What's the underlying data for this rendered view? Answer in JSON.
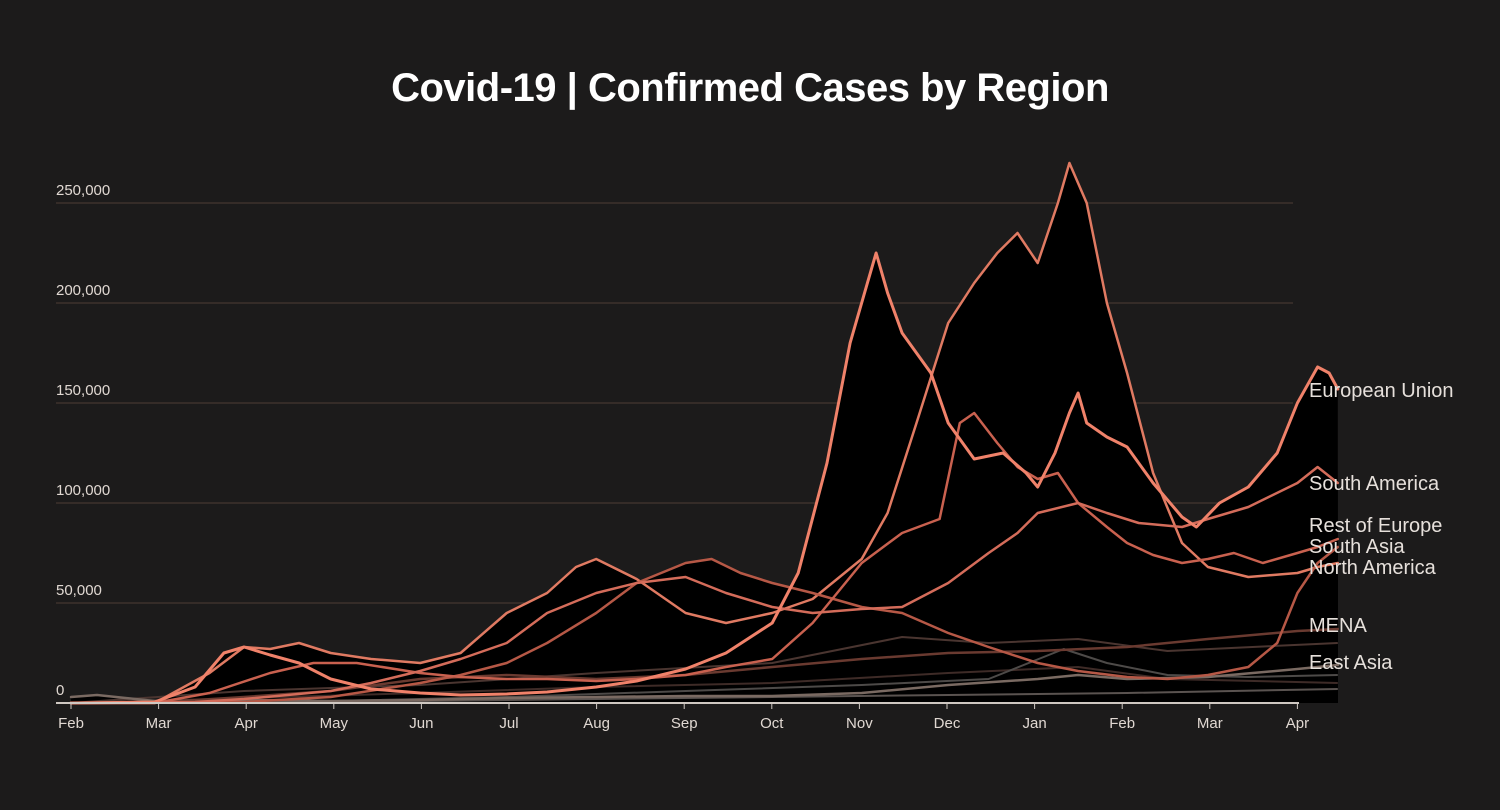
{
  "title": "Covid-19 | Confirmed Cases by Region",
  "colors": {
    "background": "#1c1b1b",
    "grid": "#4e3c36",
    "axis": "#cfc8c2"
  },
  "chart_data": {
    "type": "line",
    "title": "Covid-19 | Confirmed Cases by Region",
    "xlabel": "",
    "ylabel": "",
    "x_ticks": [
      "Feb",
      "Mar",
      "Apr",
      "May",
      "Jun",
      "Jul",
      "Aug",
      "Sep",
      "Oct",
      "Nov",
      "Dec",
      "Jan",
      "Feb",
      "Mar",
      "Apr"
    ],
    "y_ticks": [
      "0",
      "50,000",
      "100,000",
      "150,000",
      "200,000",
      "250,000"
    ],
    "y_tick_values": [
      0,
      50000,
      100000,
      150000,
      200000,
      250000
    ],
    "ylim": [
      0,
      270000
    ],
    "xlim": [
      "2020-02-01",
      "2021-04-01"
    ],
    "grid": true,
    "legend": "direct labels at right end of lines",
    "series": [
      {
        "name": "European Union",
        "color": "#f0826a",
        "filled": true,
        "points": [
          [
            "2020-02-01",
            0
          ],
          [
            "2020-03-01",
            500
          ],
          [
            "2020-03-15",
            8000
          ],
          [
            "2020-03-25",
            25000
          ],
          [
            "2020-04-01",
            28000
          ],
          [
            "2020-04-10",
            24000
          ],
          [
            "2020-04-20",
            20000
          ],
          [
            "2020-05-01",
            12000
          ],
          [
            "2020-05-15",
            7000
          ],
          [
            "2020-06-01",
            5000
          ],
          [
            "2020-06-15",
            4000
          ],
          [
            "2020-07-01",
            4500
          ],
          [
            "2020-07-15",
            5500
          ],
          [
            "2020-08-01",
            8000
          ],
          [
            "2020-08-15",
            11000
          ],
          [
            "2020-09-01",
            17000
          ],
          [
            "2020-09-15",
            25000
          ],
          [
            "2020-10-01",
            40000
          ],
          [
            "2020-10-10",
            65000
          ],
          [
            "2020-10-20",
            120000
          ],
          [
            "2020-10-28",
            180000
          ],
          [
            "2020-11-03",
            210000
          ],
          [
            "2020-11-06",
            225000
          ],
          [
            "2020-11-10",
            205000
          ],
          [
            "2020-11-15",
            185000
          ],
          [
            "2020-11-25",
            165000
          ],
          [
            "2020-12-01",
            140000
          ],
          [
            "2020-12-10",
            122000
          ],
          [
            "2020-12-20",
            125000
          ],
          [
            "2020-12-28",
            115000
          ],
          [
            "2021-01-01",
            108000
          ],
          [
            "2021-01-07",
            125000
          ],
          [
            "2021-01-12",
            145000
          ],
          [
            "2021-01-15",
            155000
          ],
          [
            "2021-01-18",
            140000
          ],
          [
            "2021-01-25",
            133000
          ],
          [
            "2021-02-01",
            128000
          ],
          [
            "2021-02-10",
            110000
          ],
          [
            "2021-02-20",
            93000
          ],
          [
            "2021-02-25",
            88000
          ],
          [
            "2021-03-05",
            100000
          ],
          [
            "2021-03-15",
            108000
          ],
          [
            "2021-03-25",
            125000
          ],
          [
            "2021-04-01",
            150000
          ],
          [
            "2021-04-08",
            168000
          ],
          [
            "2021-04-12",
            165000
          ],
          [
            "2021-04-15",
            157000
          ]
        ]
      },
      {
        "name": "South America",
        "color": "#d46c5a",
        "filled": false,
        "points": [
          [
            "2020-02-01",
            0
          ],
          [
            "2020-03-15",
            500
          ],
          [
            "2020-04-01",
            2000
          ],
          [
            "2020-05-01",
            6000
          ],
          [
            "2020-05-15",
            10000
          ],
          [
            "2020-06-01",
            16000
          ],
          [
            "2020-06-15",
            22000
          ],
          [
            "2020-07-01",
            30000
          ],
          [
            "2020-07-15",
            45000
          ],
          [
            "2020-08-01",
            55000
          ],
          [
            "2020-08-15",
            60000
          ],
          [
            "2020-09-01",
            63000
          ],
          [
            "2020-09-15",
            55000
          ],
          [
            "2020-10-01",
            48000
          ],
          [
            "2020-10-15",
            45000
          ],
          [
            "2020-11-01",
            47000
          ],
          [
            "2020-11-15",
            48000
          ],
          [
            "2020-12-01",
            60000
          ],
          [
            "2020-12-15",
            75000
          ],
          [
            "2020-12-25",
            85000
          ],
          [
            "2021-01-01",
            95000
          ],
          [
            "2021-01-15",
            100000
          ],
          [
            "2021-01-25",
            95000
          ],
          [
            "2021-02-05",
            90000
          ],
          [
            "2021-02-20",
            88000
          ],
          [
            "2021-03-01",
            92000
          ],
          [
            "2021-03-15",
            98000
          ],
          [
            "2021-04-01",
            110000
          ],
          [
            "2021-04-08",
            118000
          ],
          [
            "2021-04-15",
            110000
          ]
        ]
      },
      {
        "name": "Rest of Europe",
        "color": "#c9614f",
        "filled": false,
        "points": [
          [
            "2020-02-01",
            0
          ],
          [
            "2020-03-01",
            0
          ],
          [
            "2020-03-20",
            5000
          ],
          [
            "2020-04-10",
            15000
          ],
          [
            "2020-04-25",
            20000
          ],
          [
            "2020-05-10",
            20000
          ],
          [
            "2020-06-01",
            15000
          ],
          [
            "2020-06-15",
            13000
          ],
          [
            "2020-07-01",
            12000
          ],
          [
            "2020-07-15",
            12000
          ],
          [
            "2020-08-01",
            11000
          ],
          [
            "2020-08-15",
            12000
          ],
          [
            "2020-09-01",
            14000
          ],
          [
            "2020-09-15",
            18000
          ],
          [
            "2020-10-01",
            22000
          ],
          [
            "2020-10-15",
            40000
          ],
          [
            "2020-11-01",
            70000
          ],
          [
            "2020-11-15",
            85000
          ],
          [
            "2020-11-28",
            92000
          ],
          [
            "2020-12-05",
            140000
          ],
          [
            "2020-12-10",
            145000
          ],
          [
            "2020-12-18",
            130000
          ],
          [
            "2020-12-25",
            118000
          ],
          [
            "2021-01-01",
            112000
          ],
          [
            "2021-01-08",
            115000
          ],
          [
            "2021-01-15",
            100000
          ],
          [
            "2021-01-25",
            88000
          ],
          [
            "2021-02-01",
            80000
          ],
          [
            "2021-02-10",
            74000
          ],
          [
            "2021-02-20",
            70000
          ],
          [
            "2021-03-01",
            72000
          ],
          [
            "2021-03-10",
            75000
          ],
          [
            "2021-03-20",
            70000
          ],
          [
            "2021-04-01",
            75000
          ],
          [
            "2021-04-08",
            78000
          ],
          [
            "2021-04-15",
            82000
          ]
        ]
      },
      {
        "name": "South Asia",
        "color": "#b65846",
        "filled": false,
        "points": [
          [
            "2020-02-01",
            0
          ],
          [
            "2020-04-01",
            500
          ],
          [
            "2020-05-01",
            3000
          ],
          [
            "2020-06-01",
            10000
          ],
          [
            "2020-06-15",
            14000
          ],
          [
            "2020-07-01",
            20000
          ],
          [
            "2020-07-15",
            30000
          ],
          [
            "2020-08-01",
            45000
          ],
          [
            "2020-08-15",
            60000
          ],
          [
            "2020-09-01",
            70000
          ],
          [
            "2020-09-10",
            72000
          ],
          [
            "2020-09-20",
            65000
          ],
          [
            "2020-10-01",
            60000
          ],
          [
            "2020-10-15",
            55000
          ],
          [
            "2020-11-01",
            48000
          ],
          [
            "2020-11-15",
            45000
          ],
          [
            "2020-12-01",
            35000
          ],
          [
            "2020-12-15",
            28000
          ],
          [
            "2021-01-01",
            20000
          ],
          [
            "2021-01-15",
            16000
          ],
          [
            "2021-02-01",
            13000
          ],
          [
            "2021-02-15",
            12000
          ],
          [
            "2021-03-01",
            14000
          ],
          [
            "2021-03-15",
            18000
          ],
          [
            "2021-03-25",
            30000
          ],
          [
            "2021-04-01",
            55000
          ],
          [
            "2021-04-08",
            70000
          ],
          [
            "2021-04-15",
            78000
          ]
        ]
      },
      {
        "name": "North America",
        "color": "#e07a62",
        "filled": false,
        "points": [
          [
            "2020-02-01",
            0
          ],
          [
            "2020-03-01",
            0
          ],
          [
            "2020-03-20",
            15000
          ],
          [
            "2020-04-01",
            28000
          ],
          [
            "2020-04-10",
            27000
          ],
          [
            "2020-04-20",
            30000
          ],
          [
            "2020-05-01",
            25000
          ],
          [
            "2020-05-15",
            22000
          ],
          [
            "2020-06-01",
            20000
          ],
          [
            "2020-06-15",
            25000
          ],
          [
            "2020-07-01",
            45000
          ],
          [
            "2020-07-15",
            55000
          ],
          [
            "2020-07-25",
            68000
          ],
          [
            "2020-08-01",
            72000
          ],
          [
            "2020-08-15",
            62000
          ],
          [
            "2020-09-01",
            45000
          ],
          [
            "2020-09-15",
            40000
          ],
          [
            "2020-10-01",
            45000
          ],
          [
            "2020-10-15",
            52000
          ],
          [
            "2020-11-01",
            72000
          ],
          [
            "2020-11-10",
            95000
          ],
          [
            "2020-11-20",
            140000
          ],
          [
            "2020-12-01",
            190000
          ],
          [
            "2020-12-10",
            210000
          ],
          [
            "2020-12-18",
            225000
          ],
          [
            "2020-12-25",
            235000
          ],
          [
            "2021-01-01",
            220000
          ],
          [
            "2021-01-08",
            250000
          ],
          [
            "2021-01-12",
            270000
          ],
          [
            "2021-01-18",
            250000
          ],
          [
            "2021-01-25",
            200000
          ],
          [
            "2021-02-01",
            165000
          ],
          [
            "2021-02-10",
            115000
          ],
          [
            "2021-02-20",
            80000
          ],
          [
            "2021-03-01",
            68000
          ],
          [
            "2021-03-15",
            63000
          ],
          [
            "2021-04-01",
            65000
          ],
          [
            "2021-04-08",
            68000
          ],
          [
            "2021-04-15",
            70000
          ]
        ]
      },
      {
        "name": "MENA",
        "color": "#6a3a30",
        "filled": false,
        "points": [
          [
            "2020-02-01",
            0
          ],
          [
            "2020-03-01",
            200
          ],
          [
            "2020-04-01",
            3000
          ],
          [
            "2020-05-01",
            6000
          ],
          [
            "2020-06-01",
            12000
          ],
          [
            "2020-07-01",
            14000
          ],
          [
            "2020-08-01",
            12000
          ],
          [
            "2020-09-01",
            14000
          ],
          [
            "2020-10-01",
            18000
          ],
          [
            "2020-11-01",
            22000
          ],
          [
            "2020-12-01",
            25000
          ],
          [
            "2021-01-01",
            26000
          ],
          [
            "2021-02-01",
            28000
          ],
          [
            "2021-03-01",
            32000
          ],
          [
            "2021-04-01",
            36000
          ],
          [
            "2021-04-15",
            37000
          ]
        ]
      },
      {
        "name": "East Asia",
        "color": "#7a6a62",
        "filled": false,
        "points": [
          [
            "2020-02-01",
            3000
          ],
          [
            "2020-02-10",
            4000
          ],
          [
            "2020-03-01",
            1000
          ],
          [
            "2020-04-01",
            1500
          ],
          [
            "2020-05-01",
            1000
          ],
          [
            "2020-06-01",
            1500
          ],
          [
            "2020-07-01",
            2500
          ],
          [
            "2020-08-01",
            3000
          ],
          [
            "2020-09-01",
            3500
          ],
          [
            "2020-10-01",
            3500
          ],
          [
            "2020-11-01",
            5000
          ],
          [
            "2020-12-01",
            9000
          ],
          [
            "2021-01-01",
            12000
          ],
          [
            "2021-01-15",
            14000
          ],
          [
            "2021-02-01",
            12000
          ],
          [
            "2021-03-01",
            13000
          ],
          [
            "2021-04-01",
            17000
          ],
          [
            "2021-04-15",
            19000
          ]
        ]
      }
    ],
    "background_series": [
      {
        "color": "#3e2b27",
        "points": [
          [
            "2020-02-01",
            0
          ],
          [
            "2020-04-15",
            3000
          ],
          [
            "2020-06-01",
            5000
          ],
          [
            "2020-08-01",
            8000
          ],
          [
            "2020-10-01",
            10000
          ],
          [
            "2020-12-01",
            15000
          ],
          [
            "2021-01-15",
            18000
          ],
          [
            "2021-02-15",
            12000
          ],
          [
            "2021-04-15",
            10000
          ]
        ]
      },
      {
        "color": "#4a3530",
        "points": [
          [
            "2020-02-01",
            0
          ],
          [
            "2020-04-01",
            6000
          ],
          [
            "2020-06-01",
            9000
          ],
          [
            "2020-08-01",
            15000
          ],
          [
            "2020-10-01",
            20000
          ],
          [
            "2020-11-15",
            33000
          ],
          [
            "2020-12-15",
            30000
          ],
          [
            "2021-01-15",
            32000
          ],
          [
            "2021-02-15",
            26000
          ],
          [
            "2021-04-15",
            30000
          ]
        ]
      },
      {
        "color": "#4d4a48",
        "points": [
          [
            "2020-02-01",
            0
          ],
          [
            "2020-05-01",
            1000
          ],
          [
            "2020-07-01",
            3000
          ],
          [
            "2020-09-01",
            6000
          ],
          [
            "2020-11-01",
            9000
          ],
          [
            "2020-12-15",
            12000
          ],
          [
            "2021-01-10",
            27000
          ],
          [
            "2021-01-25",
            20000
          ],
          [
            "2021-02-15",
            14000
          ],
          [
            "2021-03-15",
            13000
          ],
          [
            "2021-04-15",
            14000
          ]
        ]
      },
      {
        "color": "#5a5350",
        "points": [
          [
            "2020-02-01",
            0
          ],
          [
            "2020-06-01",
            1000
          ],
          [
            "2020-08-01",
            2000
          ],
          [
            "2020-10-01",
            3000
          ],
          [
            "2020-12-01",
            4000
          ],
          [
            "2021-02-01",
            5000
          ],
          [
            "2021-04-15",
            7000
          ]
        ]
      }
    ]
  }
}
